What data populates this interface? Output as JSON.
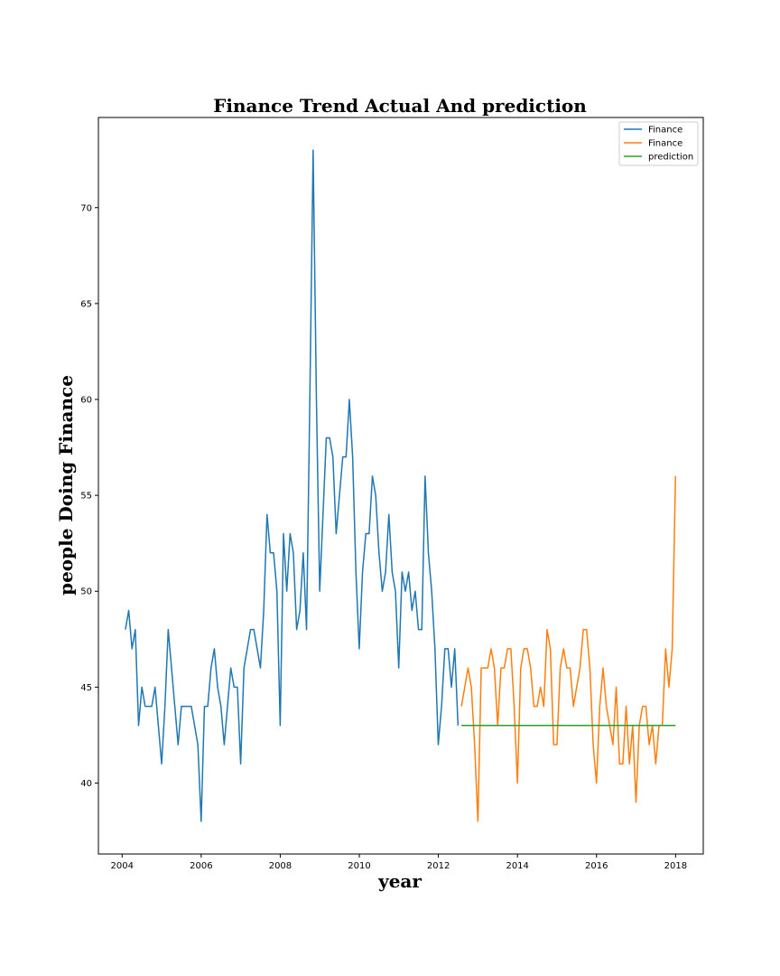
{
  "chart_data": {
    "type": "line",
    "title": "Finance Trend Actual And prediction",
    "xlabel": "year",
    "ylabel": "people Doing Finance",
    "xlim": [
      2003.4,
      2018.7
    ],
    "ylim": [
      36.3,
      74.7
    ],
    "xticks": [
      2004,
      2006,
      2008,
      2010,
      2012,
      2014,
      2016,
      2018
    ],
    "yticks": [
      40,
      45,
      50,
      55,
      60,
      65,
      70
    ],
    "grid": false,
    "legend_position": "top-right",
    "series": [
      {
        "name": "Finance",
        "color": "#1f77b4",
        "start": 2004.0833,
        "step": 0.0833,
        "values": [
          48,
          49,
          47,
          48,
          43,
          45,
          44,
          44,
          44,
          45,
          43,
          41,
          44,
          48,
          46,
          44,
          42,
          44,
          44,
          44,
          44,
          43,
          42,
          38,
          44,
          44,
          46,
          47,
          45,
          44,
          42,
          44,
          46,
          45,
          45,
          41,
          46,
          47,
          48,
          48,
          47,
          46,
          49,
          54,
          52,
          52,
          50,
          43,
          53,
          50,
          53,
          52,
          48,
          49,
          52,
          48,
          60,
          73,
          60,
          50,
          54,
          58,
          58,
          57,
          53,
          55,
          57,
          57,
          60,
          57,
          51,
          47,
          51,
          53,
          53,
          56,
          55,
          52,
          50,
          51,
          54,
          51,
          50,
          46,
          51,
          50,
          51,
          49,
          50,
          48,
          48,
          56,
          52,
          50,
          47,
          42,
          44,
          47,
          47,
          45,
          47,
          43
        ]
      },
      {
        "name": "Finance",
        "color": "#ff7f0e",
        "start": 2012.5833,
        "step": 0.0833,
        "values": [
          44,
          45,
          46,
          45,
          42,
          38,
          46,
          46,
          46,
          47,
          46,
          43,
          46,
          46,
          47,
          47,
          44,
          40,
          46,
          47,
          47,
          46,
          44,
          44,
          45,
          44,
          48,
          47,
          42,
          42,
          46,
          47,
          46,
          46,
          44,
          45,
          46,
          48,
          48,
          46,
          42,
          40,
          44,
          46,
          44,
          43,
          42,
          45,
          41,
          41,
          44,
          41,
          43,
          39,
          43,
          44,
          44,
          42,
          43,
          41,
          43,
          43,
          47,
          45,
          47,
          56
        ]
      },
      {
        "name": "prediction",
        "color": "#2ca02c",
        "x": [
          2012.5833,
          2018.0
        ],
        "values": [
          43,
          43
        ]
      }
    ]
  }
}
